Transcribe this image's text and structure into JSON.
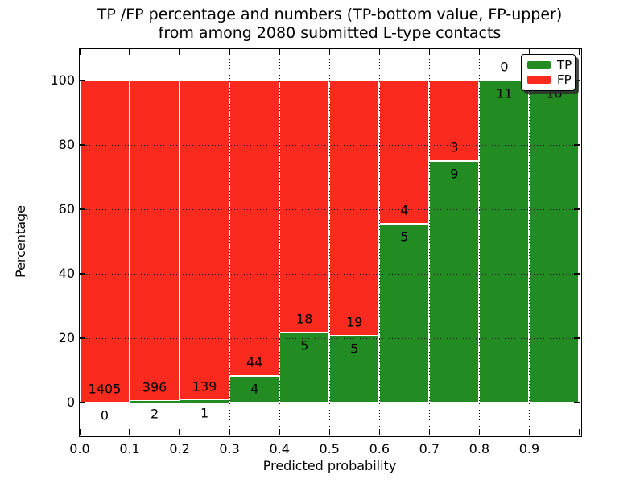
{
  "title": {
    "line1": "TP /FP percentage and numbers (TP-bottom value, FP-upper)",
    "line2": "from among 2080 submitted L-type contacts"
  },
  "axes": {
    "xlabel": "Predicted probability",
    "ylabel": "Percentage",
    "x_ticks": [
      "0.0",
      "0.1",
      "0.2",
      "0.3",
      "0.4",
      "0.5",
      "0.6",
      "0.7",
      "0.8",
      "0.9"
    ],
    "y_ticks": [
      "0",
      "20",
      "40",
      "60",
      "80",
      "100"
    ],
    "y_tick_values": [
      0,
      20,
      40,
      60,
      80,
      100
    ],
    "xlim": [
      0.0,
      1.0
    ],
    "ylim": [
      -10,
      110
    ],
    "grid": "dotted"
  },
  "legend": {
    "items": [
      {
        "label": "TP",
        "color": "#228B22"
      },
      {
        "label": "FP",
        "color": "#FA2B1E"
      }
    ],
    "position": "upper-right",
    "shadow": true
  },
  "colors": {
    "tp": "#228B22",
    "fp": "#FA2B1E",
    "grid": "#000000",
    "bar_edge": "#FFFFFF",
    "background": "#FFFFFF"
  },
  "chart_data": {
    "type": "bar",
    "stacked": true,
    "unit": "percent-of-bin",
    "title": "TP /FP percentage and numbers (TP-bottom value, FP-upper) from among 2080 submitted L-type contacts",
    "xlabel": "Predicted probability",
    "ylabel": "Percentage",
    "total_contacts": 2080,
    "bin_width": 0.1,
    "categories": [
      "0.0-0.1",
      "0.1-0.2",
      "0.2-0.3",
      "0.3-0.4",
      "0.4-0.5",
      "0.5-0.6",
      "0.6-0.7",
      "0.7-0.8",
      "0.8-0.9",
      "0.9-1.0"
    ],
    "series": [
      {
        "name": "TP",
        "values": [
          0,
          2,
          1,
          4,
          5,
          5,
          5,
          9,
          11,
          10
        ]
      },
      {
        "name": "FP",
        "values": [
          1405,
          396,
          139,
          44,
          18,
          19,
          4,
          3,
          0,
          0
        ]
      }
    ],
    "tp_percent_of_bin": [
      0.0,
      0.5,
      0.7,
      8.3,
      21.7,
      20.8,
      55.6,
      75.0,
      100.0,
      100.0
    ],
    "ylim": [
      -10,
      110
    ]
  }
}
